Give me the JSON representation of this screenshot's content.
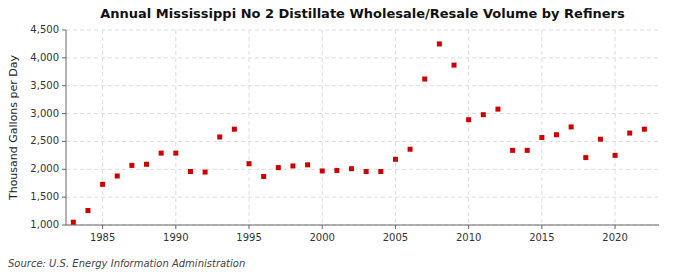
{
  "chart_data": {
    "type": "scatter",
    "title": "Annual Mississippi No 2 Distillate Wholesale/Resale Volume by Refiners",
    "y_label": "Thousand Gallons per Day",
    "source": "Source: U.S. Energy Information Administration",
    "color": "#cc0000",
    "marker": "square",
    "grid": true,
    "x": [
      1983,
      1984,
      1985,
      1986,
      1987,
      1988,
      1989,
      1990,
      1991,
      1992,
      1993,
      1994,
      1995,
      1996,
      1997,
      1998,
      1999,
      2000,
      2001,
      2002,
      2003,
      2004,
      2005,
      2006,
      2007,
      2008,
      2009,
      2010,
      2011,
      2012,
      2013,
      2014,
      2015,
      2016,
      2017,
      2018,
      2019,
      2020,
      2021,
      2022
    ],
    "values": [
      1050,
      1260,
      1730,
      1880,
      2070,
      2090,
      2290,
      2290,
      1960,
      1950,
      2580,
      2720,
      2100,
      1870,
      2030,
      2060,
      2080,
      1970,
      1980,
      2010,
      1960,
      1960,
      2180,
      2360,
      3620,
      4250,
      3870,
      2890,
      2980,
      3080,
      2340,
      2340,
      2570,
      2620,
      2760,
      2210,
      2540,
      2250,
      2650,
      2720
    ],
    "xlim": [
      1982.5,
      2023
    ],
    "ylim": [
      1000,
      4500
    ],
    "xticks": [
      1985,
      1990,
      1995,
      2000,
      2005,
      2010,
      2015,
      2020
    ],
    "yticks": [
      {
        "value": 1000,
        "label": "1,000"
      },
      {
        "value": 1500,
        "label": "1,500"
      },
      {
        "value": 2000,
        "label": "2,000"
      },
      {
        "value": 2500,
        "label": "2,500"
      },
      {
        "value": 3000,
        "label": "3,000"
      },
      {
        "value": 3500,
        "label": "3,500"
      },
      {
        "value": 4000,
        "label": "4,000"
      },
      {
        "value": 4500,
        "label": "4,500"
      }
    ]
  }
}
